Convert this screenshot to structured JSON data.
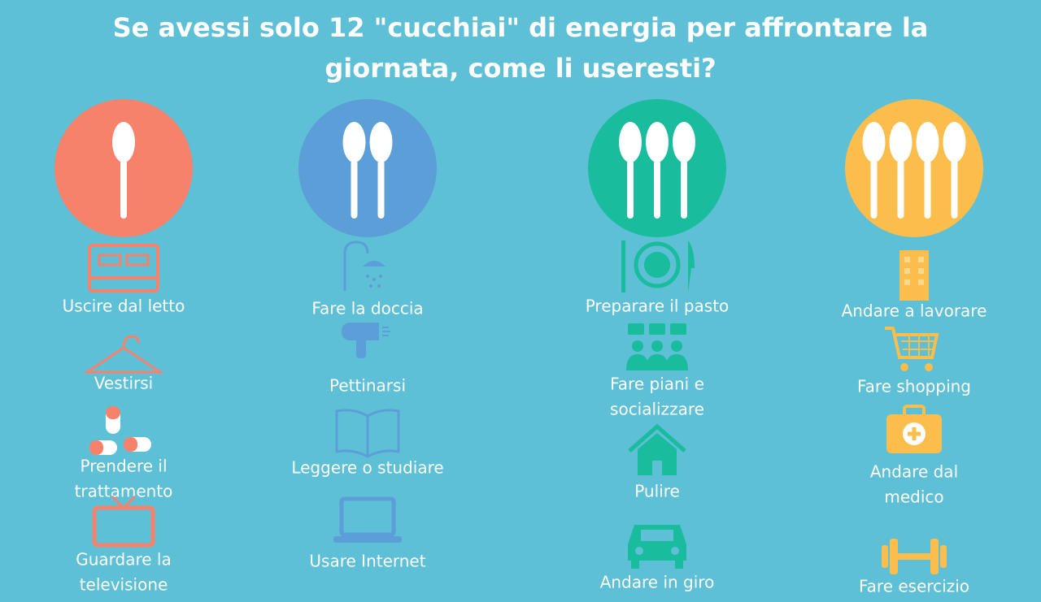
{
  "title": [
    "Se avessi solo 12 \"cucchiai\" di energia per affrontare la",
    "giornata, come li useresti?"
  ],
  "columns": [
    {
      "spoons": 1,
      "color": "#f6826c",
      "items": [
        {
          "label": [
            "Uscire dal letto"
          ]
        },
        {
          "label": [
            "Vestirsi"
          ]
        },
        {
          "label": [
            "Prendere il",
            "trattamento"
          ]
        },
        {
          "label": [
            "Guardare la",
            "televisione"
          ]
        }
      ]
    },
    {
      "spoons": 2,
      "color": "#5b9ed8",
      "items": [
        {
          "label": [
            "Fare la doccia"
          ]
        },
        {
          "label": [
            "Pettinarsi"
          ]
        },
        {
          "label": [
            "Leggere o studiare"
          ]
        },
        {
          "label": [
            "Usare Internet"
          ]
        }
      ]
    },
    {
      "spoons": 3,
      "color": "#19bc9c",
      "items": [
        {
          "label": [
            "Preparare il pasto"
          ]
        },
        {
          "label": [
            "Fare piani e",
            "socializzare"
          ]
        },
        {
          "label": [
            "Pulire"
          ]
        },
        {
          "label": [
            "Andare in giro"
          ]
        }
      ]
    },
    {
      "spoons": 4,
      "color": "#fbbd4b",
      "items": [
        {
          "label": [
            "Andare a lavorare"
          ]
        },
        {
          "label": [
            "Fare shopping"
          ]
        },
        {
          "label": [
            "Andare dal",
            "medico"
          ]
        },
        {
          "label": [
            "Fare esercizio"
          ]
        }
      ]
    }
  ]
}
